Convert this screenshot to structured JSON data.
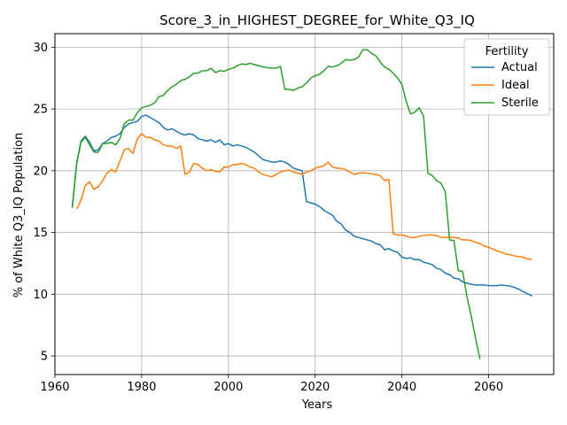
{
  "chart_data": {
    "type": "line",
    "title": "Score_3_in_HIGHEST_DEGREE_for_White_Q3_IQ",
    "xlabel": "Years",
    "ylabel": "% of White Q3_IQ Population",
    "xlim": [
      1960,
      2075
    ],
    "ylim": [
      3.5,
      31.1
    ],
    "xticks": [
      1960,
      1980,
      2000,
      2020,
      2040,
      2060
    ],
    "yticks": [
      5,
      10,
      15,
      20,
      25,
      30
    ],
    "grid": true,
    "legend": {
      "title": "Fertility",
      "placement": "top-right"
    },
    "series": [
      {
        "name": "Actual",
        "color": "#1f77b4",
        "points": [
          [
            1964,
            17.1
          ],
          [
            1965,
            20.6
          ],
          [
            1966,
            22.4
          ],
          [
            1967,
            22.8
          ],
          [
            1968,
            22.3
          ],
          [
            1969,
            21.6
          ],
          [
            1970,
            21.7
          ],
          [
            1971,
            22.2
          ],
          [
            1972,
            22.4
          ],
          [
            1973,
            22.7
          ],
          [
            1974,
            22.8
          ],
          [
            1975,
            23.0
          ],
          [
            1976,
            23.5
          ],
          [
            1977,
            23.8
          ],
          [
            1978,
            23.9
          ],
          [
            1979,
            24.0
          ],
          [
            1980,
            24.4
          ],
          [
            1981,
            24.5
          ],
          [
            1982,
            24.3
          ],
          [
            1983,
            24.1
          ],
          [
            1984,
            23.9
          ],
          [
            1985,
            23.5
          ],
          [
            1986,
            23.3
          ],
          [
            1987,
            23.4
          ],
          [
            1988,
            23.2
          ],
          [
            1989,
            23.0
          ],
          [
            1990,
            22.9
          ],
          [
            1991,
            23.0
          ],
          [
            1992,
            22.9
          ],
          [
            1993,
            22.6
          ],
          [
            1994,
            22.5
          ],
          [
            1995,
            22.4
          ],
          [
            1996,
            22.5
          ],
          [
            1997,
            22.3
          ],
          [
            1998,
            22.5
          ],
          [
            1999,
            22.1
          ],
          [
            2000,
            22.2
          ],
          [
            2001,
            22.0
          ],
          [
            2002,
            22.1
          ],
          [
            2003,
            22.0
          ],
          [
            2004,
            21.9
          ],
          [
            2005,
            21.7
          ],
          [
            2006,
            21.5
          ],
          [
            2007,
            21.2
          ],
          [
            2008,
            20.9
          ],
          [
            2009,
            20.8
          ],
          [
            2010,
            20.7
          ],
          [
            2011,
            20.7
          ],
          [
            2012,
            20.8
          ],
          [
            2013,
            20.7
          ],
          [
            2014,
            20.5
          ],
          [
            2015,
            20.2
          ],
          [
            2016,
            20.1
          ],
          [
            2017,
            20.0
          ],
          [
            2018,
            17.5
          ],
          [
            2019,
            17.4
          ],
          [
            2020,
            17.3
          ],
          [
            2021,
            17.1
          ],
          [
            2022,
            16.8
          ],
          [
            2023,
            16.6
          ],
          [
            2024,
            16.4
          ],
          [
            2025,
            15.9
          ],
          [
            2026,
            15.7
          ],
          [
            2027,
            15.2
          ],
          [
            2028,
            15.0
          ],
          [
            2029,
            14.7
          ],
          [
            2030,
            14.6
          ],
          [
            2031,
            14.5
          ],
          [
            2032,
            14.4
          ],
          [
            2033,
            14.3
          ],
          [
            2034,
            14.1
          ],
          [
            2035,
            14.0
          ],
          [
            2036,
            13.6
          ],
          [
            2037,
            13.7
          ],
          [
            2038,
            13.5
          ],
          [
            2039,
            13.4
          ],
          [
            2040,
            13.0
          ],
          [
            2041,
            12.9
          ],
          [
            2042,
            12.95
          ],
          [
            2043,
            12.8
          ],
          [
            2044,
            12.8
          ],
          [
            2045,
            12.6
          ],
          [
            2046,
            12.5
          ],
          [
            2047,
            12.4
          ],
          [
            2048,
            12.1
          ],
          [
            2049,
            12.0
          ],
          [
            2050,
            11.7
          ],
          [
            2051,
            11.6
          ],
          [
            2052,
            11.3
          ],
          [
            2053,
            11.25
          ],
          [
            2054,
            11.0
          ],
          [
            2055,
            10.9
          ],
          [
            2056,
            10.8
          ],
          [
            2057,
            10.75
          ],
          [
            2058,
            10.75
          ],
          [
            2059,
            10.75
          ],
          [
            2060,
            10.7
          ],
          [
            2061,
            10.7
          ],
          [
            2062,
            10.7
          ],
          [
            2063,
            10.75
          ],
          [
            2064,
            10.7
          ],
          [
            2065,
            10.65
          ],
          [
            2066,
            10.55
          ],
          [
            2067,
            10.4
          ],
          [
            2068,
            10.2
          ],
          [
            2069,
            10.05
          ],
          [
            2070,
            9.85
          ]
        ]
      },
      {
        "name": "Ideal",
        "color": "#ff7f0e",
        "points": [
          [
            1965,
            16.9
          ],
          [
            1966,
            17.6
          ],
          [
            1967,
            18.8
          ],
          [
            1968,
            19.1
          ],
          [
            1969,
            18.5
          ],
          [
            1970,
            18.7
          ],
          [
            1971,
            19.2
          ],
          [
            1972,
            19.8
          ],
          [
            1973,
            20.1
          ],
          [
            1974,
            19.9
          ],
          [
            1975,
            20.8
          ],
          [
            1976,
            21.7
          ],
          [
            1977,
            21.8
          ],
          [
            1978,
            21.4
          ],
          [
            1979,
            22.6
          ],
          [
            1980,
            23.0
          ],
          [
            1981,
            22.7
          ],
          [
            1982,
            22.7
          ],
          [
            1983,
            22.5
          ],
          [
            1984,
            22.4
          ],
          [
            1985,
            22.1
          ],
          [
            1986,
            22.0
          ],
          [
            1987,
            22.0
          ],
          [
            1988,
            21.8
          ],
          [
            1989,
            22.0
          ],
          [
            1990,
            19.7
          ],
          [
            1991,
            19.9
          ],
          [
            1992,
            20.6
          ],
          [
            1993,
            20.5
          ],
          [
            1994,
            20.2
          ],
          [
            1995,
            20.0
          ],
          [
            1996,
            20.1
          ],
          [
            1997,
            19.95
          ],
          [
            1998,
            19.9
          ],
          [
            1999,
            20.3
          ],
          [
            2000,
            20.3
          ],
          [
            2001,
            20.5
          ],
          [
            2002,
            20.5
          ],
          [
            2003,
            20.6
          ],
          [
            2004,
            20.5
          ],
          [
            2005,
            20.3
          ],
          [
            2006,
            20.2
          ],
          [
            2007,
            19.9
          ],
          [
            2008,
            19.7
          ],
          [
            2009,
            19.6
          ],
          [
            2010,
            19.5
          ],
          [
            2011,
            19.7
          ],
          [
            2012,
            19.9
          ],
          [
            2013,
            20.0
          ],
          [
            2014,
            20.05
          ],
          [
            2015,
            19.9
          ],
          [
            2016,
            19.8
          ],
          [
            2017,
            19.7
          ],
          [
            2018,
            19.9
          ],
          [
            2019,
            20.0
          ],
          [
            2020,
            20.2
          ],
          [
            2021,
            20.3
          ],
          [
            2022,
            20.4
          ],
          [
            2023,
            20.7
          ],
          [
            2024,
            20.3
          ],
          [
            2025,
            20.2
          ],
          [
            2026,
            20.2
          ],
          [
            2027,
            20.1
          ],
          [
            2028,
            19.9
          ],
          [
            2029,
            19.7
          ],
          [
            2030,
            19.8
          ],
          [
            2031,
            19.85
          ],
          [
            2032,
            19.8
          ],
          [
            2033,
            19.75
          ],
          [
            2034,
            19.7
          ],
          [
            2035,
            19.6
          ],
          [
            2036,
            19.2
          ],
          [
            2037,
            19.3
          ],
          [
            2038,
            14.9
          ],
          [
            2039,
            14.8
          ],
          [
            2040,
            14.8
          ],
          [
            2041,
            14.7
          ],
          [
            2042,
            14.6
          ],
          [
            2043,
            14.6
          ],
          [
            2044,
            14.7
          ],
          [
            2045,
            14.75
          ],
          [
            2046,
            14.8
          ],
          [
            2047,
            14.8
          ],
          [
            2048,
            14.75
          ],
          [
            2049,
            14.6
          ],
          [
            2050,
            14.6
          ],
          [
            2051,
            14.6
          ],
          [
            2052,
            14.6
          ],
          [
            2053,
            14.55
          ],
          [
            2054,
            14.4
          ],
          [
            2055,
            14.4
          ],
          [
            2056,
            14.35
          ],
          [
            2057,
            14.2
          ],
          [
            2058,
            14.1
          ],
          [
            2059,
            13.9
          ],
          [
            2060,
            13.8
          ],
          [
            2061,
            13.65
          ],
          [
            2062,
            13.5
          ],
          [
            2063,
            13.4
          ],
          [
            2064,
            13.25
          ],
          [
            2065,
            13.2
          ],
          [
            2066,
            13.1
          ],
          [
            2067,
            13.05
          ],
          [
            2068,
            13.0
          ],
          [
            2069,
            12.85
          ],
          [
            2070,
            12.85
          ]
        ]
      },
      {
        "name": "Sterile",
        "color": "#2ca02c",
        "points": [
          [
            1964,
            17.0
          ],
          [
            1965,
            20.5
          ],
          [
            1966,
            22.3
          ],
          [
            1967,
            22.7
          ],
          [
            1968,
            22.1
          ],
          [
            1969,
            21.5
          ],
          [
            1970,
            21.5
          ],
          [
            1971,
            22.2
          ],
          [
            1972,
            22.2
          ],
          [
            1973,
            22.3
          ],
          [
            1974,
            22.1
          ],
          [
            1975,
            22.6
          ],
          [
            1976,
            23.8
          ],
          [
            1977,
            24.1
          ],
          [
            1978,
            24.1
          ],
          [
            1979,
            24.7
          ],
          [
            1980,
            25.1
          ],
          [
            1981,
            25.2
          ],
          [
            1982,
            25.3
          ],
          [
            1983,
            25.5
          ],
          [
            1984,
            26.0
          ],
          [
            1985,
            26.1
          ],
          [
            1986,
            26.5
          ],
          [
            1987,
            26.8
          ],
          [
            1988,
            27.0
          ],
          [
            1989,
            27.3
          ],
          [
            1990,
            27.4
          ],
          [
            1991,
            27.6
          ],
          [
            1992,
            27.9
          ],
          [
            1993,
            27.9
          ],
          [
            1994,
            28.1
          ],
          [
            1995,
            28.1
          ],
          [
            1996,
            28.3
          ],
          [
            1997,
            27.95
          ],
          [
            1998,
            28.1
          ],
          [
            1999,
            28.05
          ],
          [
            2000,
            28.2
          ],
          [
            2001,
            28.3
          ],
          [
            2002,
            28.5
          ],
          [
            2003,
            28.65
          ],
          [
            2004,
            28.6
          ],
          [
            2005,
            28.7
          ],
          [
            2006,
            28.6
          ],
          [
            2007,
            28.5
          ],
          [
            2008,
            28.4
          ],
          [
            2009,
            28.35
          ],
          [
            2010,
            28.3
          ],
          [
            2011,
            28.3
          ],
          [
            2012,
            28.45
          ],
          [
            2013,
            26.6
          ],
          [
            2014,
            26.6
          ],
          [
            2015,
            26.5
          ],
          [
            2016,
            26.7
          ],
          [
            2017,
            26.8
          ],
          [
            2018,
            27.1
          ],
          [
            2019,
            27.5
          ],
          [
            2020,
            27.7
          ],
          [
            2021,
            27.8
          ],
          [
            2022,
            28.1
          ],
          [
            2023,
            28.45
          ],
          [
            2024,
            28.4
          ],
          [
            2025,
            28.5
          ],
          [
            2026,
            28.7
          ],
          [
            2027,
            29.0
          ],
          [
            2028,
            28.95
          ],
          [
            2029,
            29.0
          ],
          [
            2030,
            29.2
          ],
          [
            2031,
            29.8
          ],
          [
            2032,
            29.8
          ],
          [
            2033,
            29.5
          ],
          [
            2034,
            29.3
          ],
          [
            2035,
            28.8
          ],
          [
            2036,
            28.4
          ],
          [
            2037,
            28.2
          ],
          [
            2038,
            27.9
          ],
          [
            2039,
            27.5
          ],
          [
            2040,
            27.0
          ],
          [
            2041,
            25.6
          ],
          [
            2042,
            24.6
          ],
          [
            2043,
            24.75
          ],
          [
            2044,
            25.1
          ],
          [
            2045,
            24.4
          ],
          [
            2046,
            19.8
          ],
          [
            2047,
            19.6
          ],
          [
            2048,
            19.2
          ],
          [
            2049,
            19.0
          ],
          [
            2050,
            18.3
          ],
          [
            2051,
            14.4
          ],
          [
            2052,
            14.35
          ],
          [
            2053,
            11.9
          ],
          [
            2054,
            11.85
          ],
          [
            2055,
            9.8
          ],
          [
            2056,
            8.2
          ],
          [
            2057,
            6.4
          ],
          [
            2058,
            4.75
          ]
        ]
      }
    ]
  }
}
